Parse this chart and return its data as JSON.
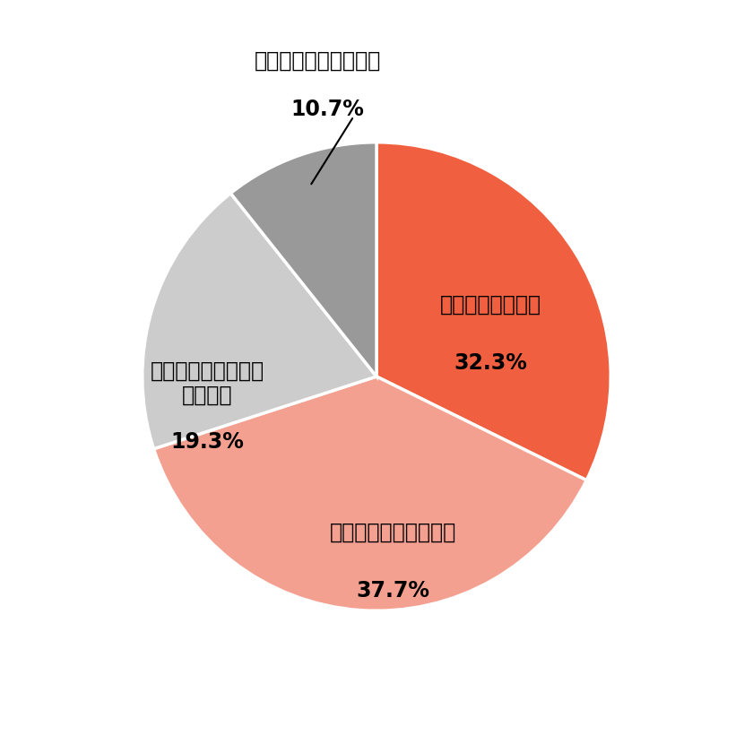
{
  "labels": [
    "応援したいと思う",
    "やや応援したいと思う",
    "あまり応援したいと\n思わない",
    "応援したいと思わない"
  ],
  "values": [
    32.3,
    37.7,
    19.3,
    10.7
  ],
  "colors": [
    "#F06040",
    "#F4A090",
    "#CCCCCC",
    "#999999"
  ],
  "pct_labels": [
    "32.3%",
    "37.7%",
    "19.3%",
    "10.7%"
  ],
  "background_color": "#ffffff",
  "label_fontsize": 17,
  "pct_fontsize": 17
}
